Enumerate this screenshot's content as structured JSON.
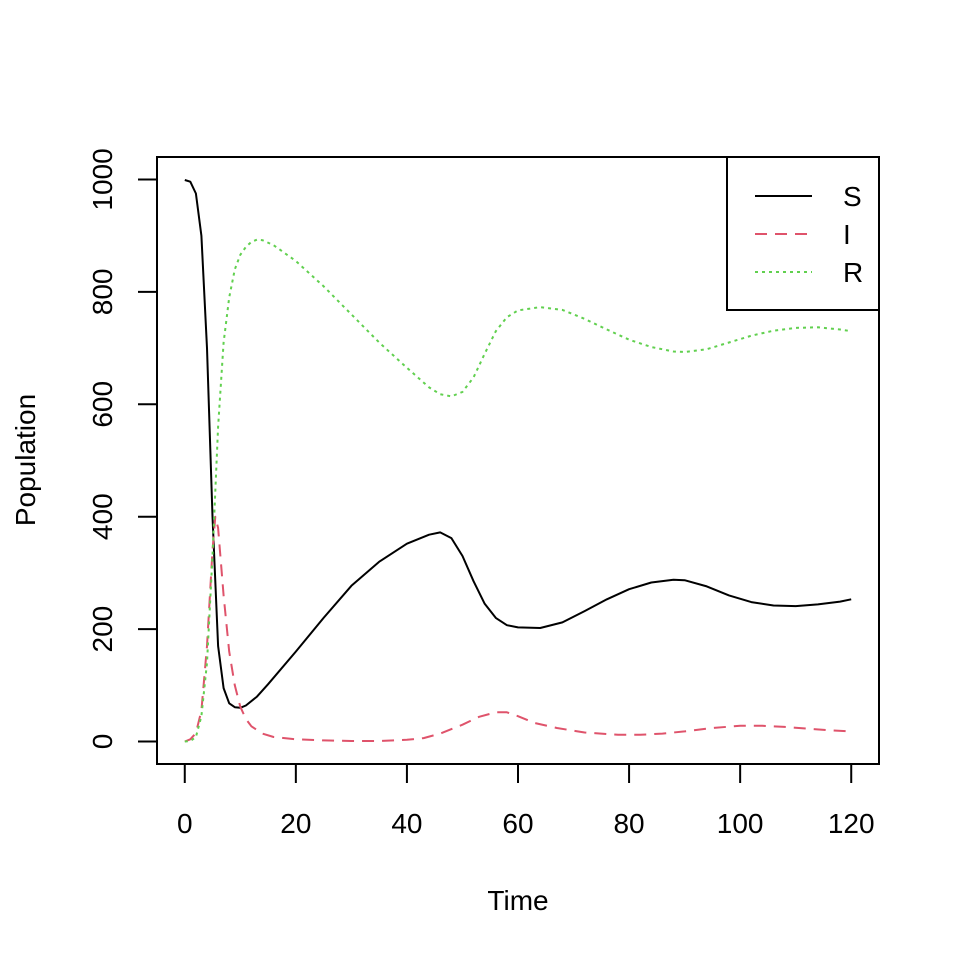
{
  "chart_data": {
    "type": "line",
    "title": "",
    "xlabel": "Time",
    "ylabel": "Population",
    "xlim": [
      -5,
      125
    ],
    "ylim": [
      -40,
      1040
    ],
    "xticks": [
      0,
      20,
      40,
      60,
      80,
      100,
      120
    ],
    "yticks": [
      0,
      200,
      400,
      600,
      800,
      1000
    ],
    "grid": false,
    "legend_position": "top-right",
    "series": [
      {
        "name": "S",
        "color": "#000000",
        "dash": "solid",
        "points": [
          [
            0,
            999
          ],
          [
            1,
            996
          ],
          [
            2,
            975
          ],
          [
            3,
            900
          ],
          [
            4,
            700
          ],
          [
            5,
            400
          ],
          [
            6,
            170
          ],
          [
            7,
            95
          ],
          [
            8,
            68
          ],
          [
            9,
            61
          ],
          [
            10,
            60
          ],
          [
            11,
            64
          ],
          [
            13,
            80
          ],
          [
            15,
            102
          ],
          [
            20,
            160
          ],
          [
            25,
            220
          ],
          [
            30,
            277
          ],
          [
            35,
            320
          ],
          [
            40,
            352
          ],
          [
            44,
            368
          ],
          [
            46,
            372
          ],
          [
            48,
            362
          ],
          [
            50,
            330
          ],
          [
            52,
            285
          ],
          [
            54,
            245
          ],
          [
            56,
            220
          ],
          [
            58,
            207
          ],
          [
            60,
            203
          ],
          [
            64,
            202
          ],
          [
            68,
            212
          ],
          [
            72,
            232
          ],
          [
            76,
            253
          ],
          [
            80,
            271
          ],
          [
            84,
            283
          ],
          [
            88,
            288
          ],
          [
            90,
            287
          ],
          [
            94,
            276
          ],
          [
            98,
            260
          ],
          [
            102,
            248
          ],
          [
            106,
            242
          ],
          [
            110,
            241
          ],
          [
            114,
            244
          ],
          [
            118,
            249
          ],
          [
            120,
            253
          ]
        ]
      },
      {
        "name": "I",
        "color": "#df536b",
        "dash": "dashed",
        "points": [
          [
            0,
            0
          ],
          [
            1,
            4
          ],
          [
            2,
            15
          ],
          [
            3,
            55
          ],
          [
            4,
            170
          ],
          [
            5,
            340
          ],
          [
            5.5,
            400
          ],
          [
            6,
            380
          ],
          [
            7,
            260
          ],
          [
            8,
            160
          ],
          [
            9,
            100
          ],
          [
            10,
            62
          ],
          [
            11,
            40
          ],
          [
            12,
            27
          ],
          [
            14,
            14
          ],
          [
            16,
            8
          ],
          [
            20,
            4
          ],
          [
            25,
            2
          ],
          [
            30,
            1
          ],
          [
            35,
            1
          ],
          [
            40,
            3
          ],
          [
            43,
            6
          ],
          [
            46,
            14
          ],
          [
            50,
            30
          ],
          [
            53,
            44
          ],
          [
            56,
            52
          ],
          [
            58,
            52
          ],
          [
            60,
            45
          ],
          [
            63,
            33
          ],
          [
            67,
            24
          ],
          [
            72,
            16
          ],
          [
            78,
            12
          ],
          [
            82,
            12
          ],
          [
            86,
            14
          ],
          [
            90,
            18
          ],
          [
            95,
            24
          ],
          [
            100,
            28
          ],
          [
            104,
            28
          ],
          [
            108,
            26
          ],
          [
            112,
            23
          ],
          [
            116,
            20
          ],
          [
            120,
            18
          ]
        ]
      },
      {
        "name": "R",
        "color": "#61d04f",
        "dash": "dotted",
        "points": [
          [
            0,
            0
          ],
          [
            1,
            1
          ],
          [
            2,
            8
          ],
          [
            3,
            45
          ],
          [
            4,
            140
          ],
          [
            5,
            330
          ],
          [
            6,
            560
          ],
          [
            7,
            710
          ],
          [
            8,
            790
          ],
          [
            9,
            840
          ],
          [
            10,
            866
          ],
          [
            11,
            880
          ],
          [
            12,
            889
          ],
          [
            13,
            893
          ],
          [
            14,
            892
          ],
          [
            16,
            883
          ],
          [
            20,
            855
          ],
          [
            25,
            810
          ],
          [
            30,
            760
          ],
          [
            35,
            710
          ],
          [
            40,
            665
          ],
          [
            44,
            630
          ],
          [
            46,
            618
          ],
          [
            48,
            614
          ],
          [
            50,
            622
          ],
          [
            52,
            648
          ],
          [
            54,
            690
          ],
          [
            56,
            730
          ],
          [
            58,
            755
          ],
          [
            60,
            767
          ],
          [
            64,
            773
          ],
          [
            68,
            768
          ],
          [
            72,
            752
          ],
          [
            76,
            733
          ],
          [
            80,
            715
          ],
          [
            84,
            702
          ],
          [
            88,
            694
          ],
          [
            90,
            693
          ],
          [
            94,
            698
          ],
          [
            98,
            710
          ],
          [
            102,
            722
          ],
          [
            106,
            731
          ],
          [
            110,
            736
          ],
          [
            114,
            737
          ],
          [
            118,
            733
          ],
          [
            120,
            730
          ]
        ]
      }
    ]
  }
}
